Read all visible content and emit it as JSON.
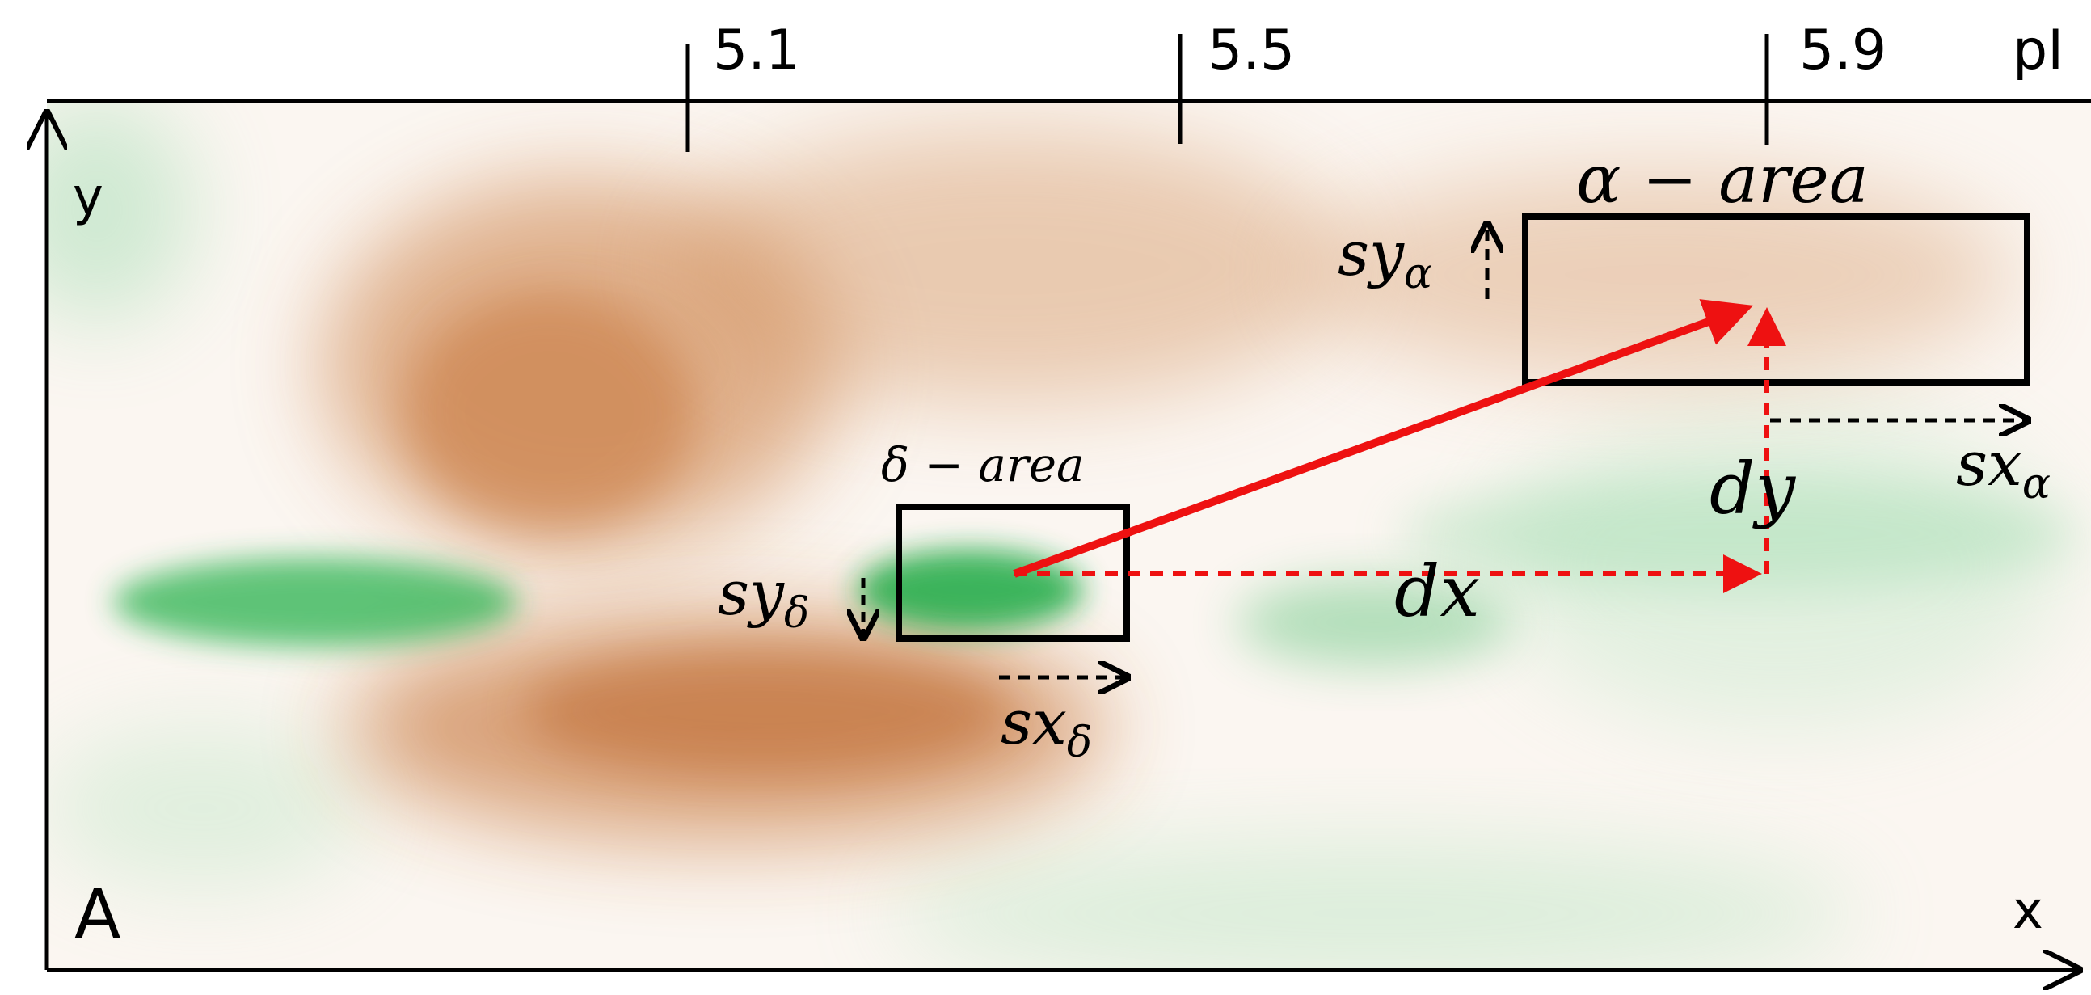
{
  "panel_label": "A",
  "axes": {
    "x_label": "x",
    "y_label": "y",
    "top_ticks": [
      "5.1",
      "5.5",
      "5.9"
    ],
    "top_unit": "pI"
  },
  "areas": {
    "alpha": {
      "label": "α − area",
      "sy": {
        "base": "sy",
        "sub": "α"
      },
      "sx": {
        "base": "sx",
        "sub": "α"
      }
    },
    "delta": {
      "label": "δ − area",
      "sy": {
        "base": "sy",
        "sub": "δ"
      },
      "sx": {
        "base": "sx",
        "sub": "δ"
      }
    }
  },
  "displacement": {
    "dx": "dx",
    "dy": "dy"
  },
  "colors": {
    "background": "#fbf6f1",
    "brown_spot": "#c9783a",
    "green_spot": "#2bb34f",
    "frame": "#000000",
    "vector": "#ee1111"
  }
}
